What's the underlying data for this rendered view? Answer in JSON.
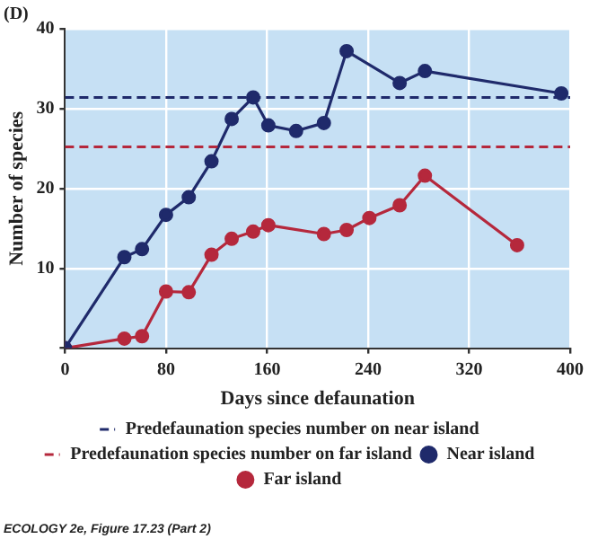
{
  "chart_data": {
    "type": "line",
    "title": "(D)",
    "xlabel": "Days since defaunation",
    "ylabel": "Number of species",
    "x": [
      0,
      47,
      61,
      80,
      98,
      116,
      132,
      149,
      161,
      183,
      205,
      223,
      265,
      285,
      393
    ],
    "series": [
      {
        "name": "Near island",
        "color": "#1f2a6b",
        "values": [
          0,
          11.4,
          12.4,
          16.7,
          18.9,
          23.4,
          28.7,
          31.4,
          27.9,
          27.2,
          28.2,
          37.2,
          33.2,
          34.7,
          31.9
        ]
      },
      {
        "name": "Far island",
        "color": "#b5283c",
        "x": [
          0,
          47,
          61,
          80,
          98,
          116,
          132,
          149,
          161,
          205,
          223,
          241,
          265,
          285,
          358
        ],
        "values": [
          0,
          1.2,
          1.5,
          7.1,
          7,
          11.7,
          13.7,
          14.6,
          15.4,
          14.3,
          14.8,
          16.3,
          17.9,
          21.6,
          12.9
        ]
      }
    ],
    "ref_lines": [
      {
        "axis": "y",
        "value": 31.4,
        "label": "Predefaunation species number on near island",
        "color": "#1f2a6b",
        "line_style": "dashed"
      },
      {
        "axis": "y",
        "value": 25.2,
        "label": "Predefaunation species number on far island",
        "color": "#b5283c",
        "line_style": "dashed"
      }
    ],
    "xlim": [
      0,
      400
    ],
    "xticks": [
      0,
      80,
      160,
      240,
      320,
      400
    ],
    "ylim": [
      0,
      40
    ],
    "yticks": [
      {
        "value": 0,
        "label": null
      },
      10,
      20,
      30,
      40
    ],
    "grid": true,
    "legend": "bottom",
    "marker": "circle",
    "line_style": "solid",
    "annotations": [
      "ECOLOGY 2e, Figure 17.23 (Part 2)"
    ]
  }
}
